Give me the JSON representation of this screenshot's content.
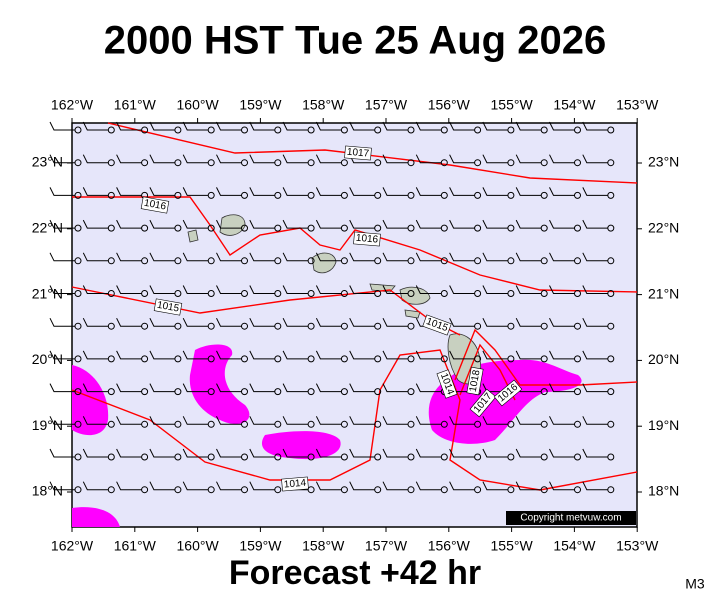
{
  "header": {
    "title": "2000 HST Tue 25 Aug 2026"
  },
  "axes": {
    "lon_labels": [
      "162°W",
      "161°W",
      "160°W",
      "159°W",
      "158°W",
      "157°W",
      "156°W",
      "155°W",
      "154°W",
      "153°W"
    ],
    "lat_labels": [
      "23°N",
      "22°N",
      "21°N",
      "20°N",
      "19°N",
      "18°N"
    ]
  },
  "isobar_labels": [
    1017,
    1016,
    1016,
    1015,
    1015,
    1014,
    1014,
    1018,
    1017,
    1016
  ],
  "copyright": "Copyright metvuw.com",
  "footer": {
    "forecast": "Forecast +42 hr",
    "code": "M3"
  }
}
